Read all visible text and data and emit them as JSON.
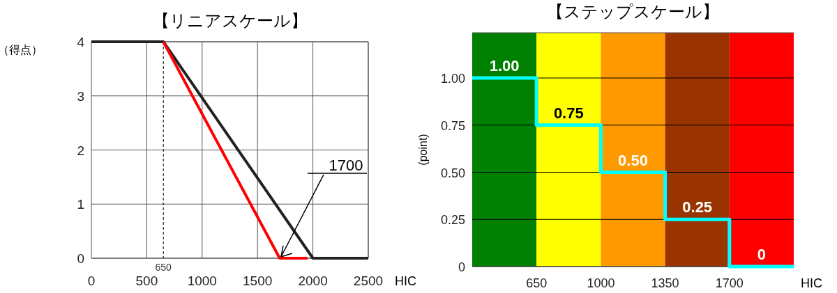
{
  "chart_data": [
    {
      "type": "line",
      "title": "【リニアスケール】",
      "xlabel": "HIC",
      "ylabel": "（得点）",
      "xlim": [
        0,
        2500
      ],
      "xticks": [
        0,
        500,
        1000,
        1500,
        2000,
        2500
      ],
      "ylim": [
        0,
        4
      ],
      "yticks": [
        0,
        1,
        2,
        3,
        4
      ],
      "grid": true,
      "series": [
        {
          "color": "#222222",
          "x": [
            0,
            650,
            2000,
            2500
          ],
          "values": [
            4,
            4,
            0,
            0
          ]
        },
        {
          "color": "#ff0000",
          "x": [
            650,
            1700,
            1950
          ],
          "values": [
            4,
            0,
            0
          ]
        }
      ],
      "ref_lines": [
        {
          "axis": "x",
          "value": 650,
          "label": "650",
          "line_style": "dashed",
          "color": "#000000"
        }
      ],
      "annotations": [
        {
          "text": "1700",
          "x": 1700,
          "y": 0
        }
      ]
    },
    {
      "type": "step",
      "title": "【ステップスケール】",
      "xlabel": "HIC",
      "ylabel": "(point)",
      "xlim": [
        300,
        2050
      ],
      "xticks": [
        650,
        1000,
        1350,
        1700
      ],
      "ylim": [
        0,
        1.24
      ],
      "yticks": [
        {
          "value": 0,
          "label": "0"
        },
        0.25,
        {
          "value": 0.5,
          "label": "0.50"
        },
        0.75,
        {
          "value": 1,
          "label": "1.00"
        }
      ],
      "grid": "y",
      "series": [
        {
          "color": "#00ffff",
          "x": [
            300,
            650,
            1000,
            1350,
            1700,
            2050
          ],
          "values": [
            1,
            0.75,
            0.5,
            0.25,
            0,
            0
          ],
          "value_labels": [
            "1.00",
            "0.75",
            "0.50",
            "0.25",
            "0",
            null
          ]
        }
      ],
      "bands": [
        {
          "axis": "x",
          "from": 300,
          "to": 650,
          "color": "#008000"
        },
        {
          "axis": "x",
          "from": 650,
          "to": 1000,
          "color": "#ffff00"
        },
        {
          "axis": "x",
          "from": 1000,
          "to": 1350,
          "color": "#ff9900"
        },
        {
          "axis": "x",
          "from": 1350,
          "to": 1700,
          "color": "#993300"
        },
        {
          "axis": "x",
          "from": 1700,
          "to": 2050,
          "color": "#ff0000"
        }
      ]
    }
  ]
}
